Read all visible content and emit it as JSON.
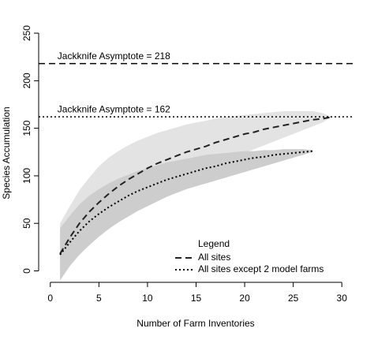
{
  "chart_data": {
    "type": "line",
    "xlabel": "Number of Farm Inventories",
    "ylabel": "Species Accumulation",
    "xlim": [
      -1.2,
      31.2
    ],
    "ylim": [
      -12,
      260
    ],
    "xticks": [
      0,
      5,
      10,
      15,
      20,
      25,
      30
    ],
    "yticks": [
      0,
      50,
      100,
      150,
      200,
      250
    ],
    "legend_title": "Legend",
    "legend": "bottom-right",
    "series": [
      {
        "name": "All sites",
        "color": "#222222",
        "dash": "dashed",
        "band_color": "#e3e3e3",
        "x": [
          1,
          2,
          3,
          4,
          5,
          6,
          7,
          8,
          9,
          10,
          11,
          12,
          13,
          14,
          15,
          16,
          17,
          18,
          19,
          20,
          21,
          22,
          23,
          24,
          25,
          26,
          27,
          28,
          29
        ],
        "values": [
          18,
          35,
          50,
          62,
          72,
          81,
          89,
          96,
          102,
          108,
          113,
          117,
          121,
          125,
          128,
          131,
          135,
          138,
          141,
          144,
          146,
          149,
          151,
          153,
          155,
          157,
          159,
          160,
          162
        ],
        "upper": [
          50,
          68,
          85,
          98,
          110,
          119,
          126,
          132,
          137,
          141,
          145,
          148,
          151,
          154,
          156,
          158,
          160,
          162,
          163,
          164,
          165,
          166,
          167,
          168,
          168,
          168,
          168,
          166,
          162
        ],
        "lower": [
          -8,
          10,
          22,
          33,
          42,
          50,
          58,
          65,
          72,
          78,
          84,
          90,
          95,
          100,
          104,
          108,
          112,
          116,
          120,
          124,
          128,
          132,
          136,
          140,
          144,
          148,
          152,
          156,
          162
        ]
      },
      {
        "name": "All sites except 2 model farms",
        "color": "#000000",
        "dash": "dotted",
        "band_color": "#cdcdcd",
        "x": [
          1,
          2,
          3,
          4,
          5,
          6,
          7,
          8,
          9,
          10,
          11,
          12,
          13,
          14,
          15,
          16,
          17,
          18,
          19,
          20,
          21,
          22,
          23,
          24,
          25,
          26,
          27
        ],
        "values": [
          17,
          30,
          42,
          52,
          60,
          67,
          73,
          79,
          84,
          88,
          92,
          96,
          99,
          102,
          105,
          108,
          110,
          113,
          115,
          117,
          119,
          120,
          122,
          123,
          124,
          125,
          126
        ],
        "upper": [
          45,
          58,
          70,
          79,
          86,
          92,
          97,
          101,
          105,
          108,
          111,
          114,
          116,
          118,
          120,
          122,
          123,
          124,
          125,
          126,
          126,
          127,
          127,
          128,
          128,
          128,
          127
        ],
        "lower": [
          -10,
          5,
          17,
          27,
          36,
          44,
          51,
          57,
          63,
          68,
          73,
          78,
          82,
          86,
          89,
          92,
          95,
          98,
          101,
          104,
          107,
          110,
          113,
          116,
          119,
          122,
          125
        ]
      }
    ],
    "asymptotes": [
      {
        "label": "Jackknife Asymptote = 218",
        "value": 218,
        "dash": "dashed"
      },
      {
        "label": "Jackknife Asymptote = 162",
        "value": 162,
        "dash": "dotted"
      }
    ]
  }
}
